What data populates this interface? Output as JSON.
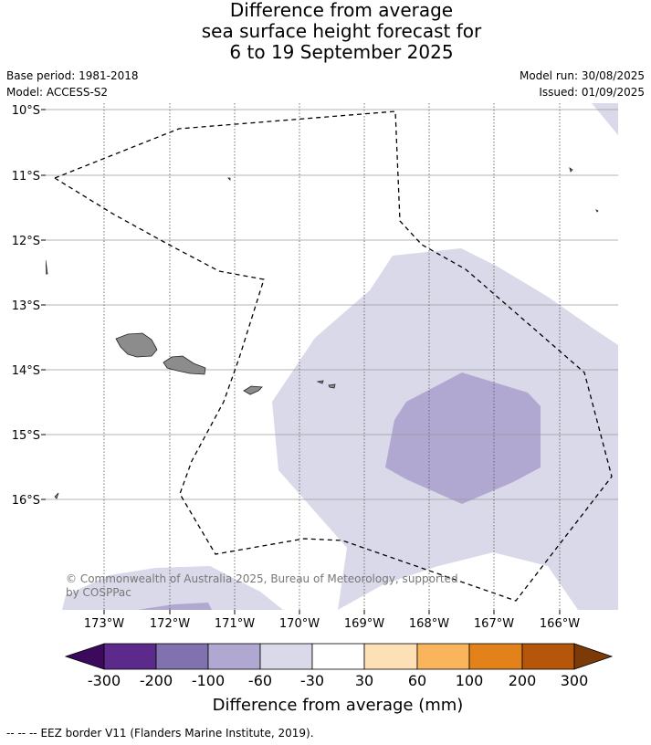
{
  "title": {
    "line1": "Difference from average",
    "line2": "sea surface height forecast for",
    "line3": "6 to 19 September 2025"
  },
  "meta": {
    "base_period": "Base period: 1981-2018",
    "model": "Model: ACCESS-S2",
    "model_run": "Model run: 30/08/2025",
    "issued": "Issued: 01/09/2025"
  },
  "map": {
    "lat_labels": [
      "10°S",
      "11°S",
      "12°S",
      "13°S",
      "14°S",
      "15°S",
      "16°S"
    ],
    "lon_labels": [
      "173°W",
      "172°W",
      "171°W",
      "170°W",
      "169°W",
      "168°W",
      "167°W",
      "166°W"
    ],
    "copyright": "© Commonwealth of Australia 2025, Bureau of Meteorology, supported",
    "copyright_line2": "by COSPPac",
    "colors": {
      "land": "#8c8c8c",
      "band_-60_-30": "#d9d9ea",
      "band_-100_-60": "#b0a8d1"
    }
  },
  "colorbar": {
    "title": "Difference from average (mm)",
    "tick_labels": [
      "-300",
      "-200",
      "-100",
      "-60",
      "-30",
      "30",
      "60",
      "100",
      "200",
      "300"
    ],
    "colors": [
      "#3b0a5c",
      "#5b2a8a",
      "#8171ae",
      "#b0a8d1",
      "#d9d9ea",
      "#ffffff",
      "#fde0b5",
      "#f9b45c",
      "#e3821b",
      "#b5560a",
      "#7d3a09"
    ]
  },
  "footer": {
    "legend_symbol": "-- -- --",
    "legend_text": "EEZ border V11 (Flanders Marine Institute, 2019)."
  }
}
